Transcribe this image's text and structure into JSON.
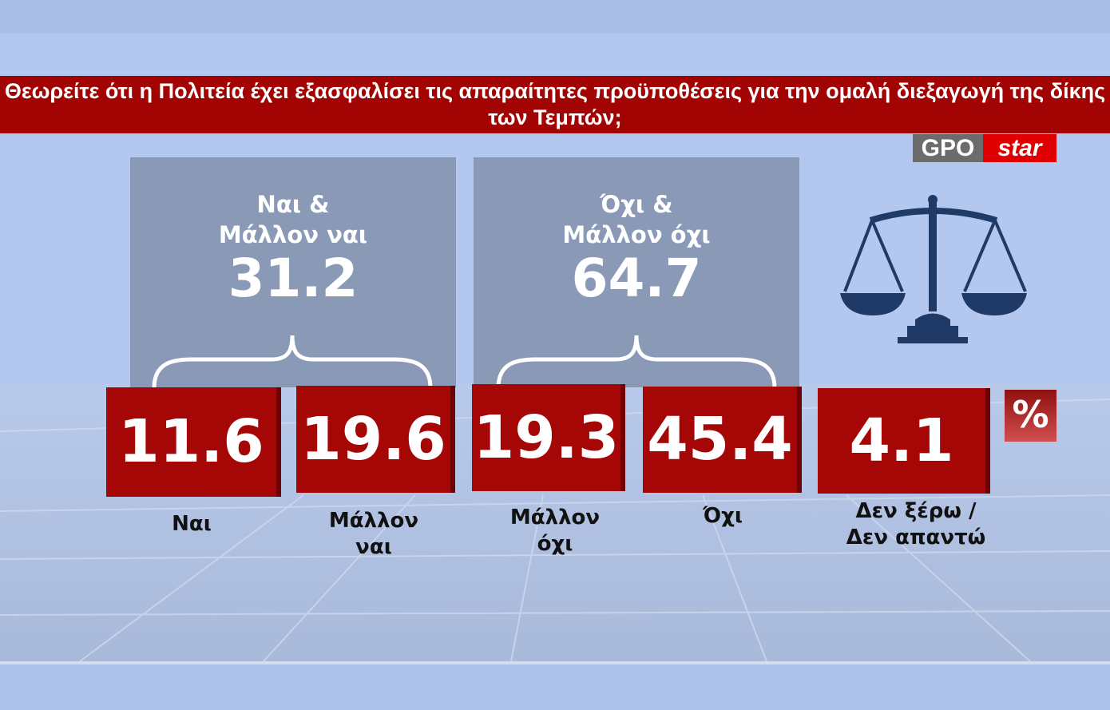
{
  "title": "Θεωρείτε ότι η Πολιτεία έχει εξασφαλίσει τις απαραίτητες προϋποθέσεις για την ομαλή διεξαγωγή της δίκης των Τεμπών;",
  "logo": {
    "left": "GPO",
    "right": "star"
  },
  "unit": "%",
  "groups": [
    {
      "label_line1": "Ναι &",
      "label_line2": "Μάλλον ναι",
      "value": "31.2"
    },
    {
      "label_line1": "Όχι &",
      "label_line2": "Μάλλον όχι",
      "value": "64.7"
    }
  ],
  "chart_data": {
    "type": "bar",
    "title": "Θεωρείτε ότι η Πολιτεία έχει εξασφαλίσει τις απαραίτητες προϋποθέσεις για την ομαλή διεξαγωγή της δίκης των Τεμπών;",
    "unit": "%",
    "categories": [
      "Ναι",
      "Μάλλον ναι",
      "Μάλλον όχι",
      "Όχι",
      "Δεν ξέρω / Δεν απαντώ"
    ],
    "values": [
      11.6,
      19.6,
      19.3,
      45.4,
      4.1
    ],
    "display_values": [
      "11.6",
      "19.6",
      "19.3",
      "45.4",
      "4.1"
    ],
    "category_lines": [
      [
        "Ναι"
      ],
      [
        "Μάλλον",
        "ναι"
      ],
      [
        "Μάλλον",
        "όχι"
      ],
      [
        "Όχι"
      ],
      [
        "Δεν ξέρω /",
        "Δεν απαντώ"
      ]
    ]
  },
  "colors": {
    "title_bg": "#a20404",
    "box": "#a50606",
    "panel": "#8a9ab6",
    "icon": "#1f3a66"
  }
}
